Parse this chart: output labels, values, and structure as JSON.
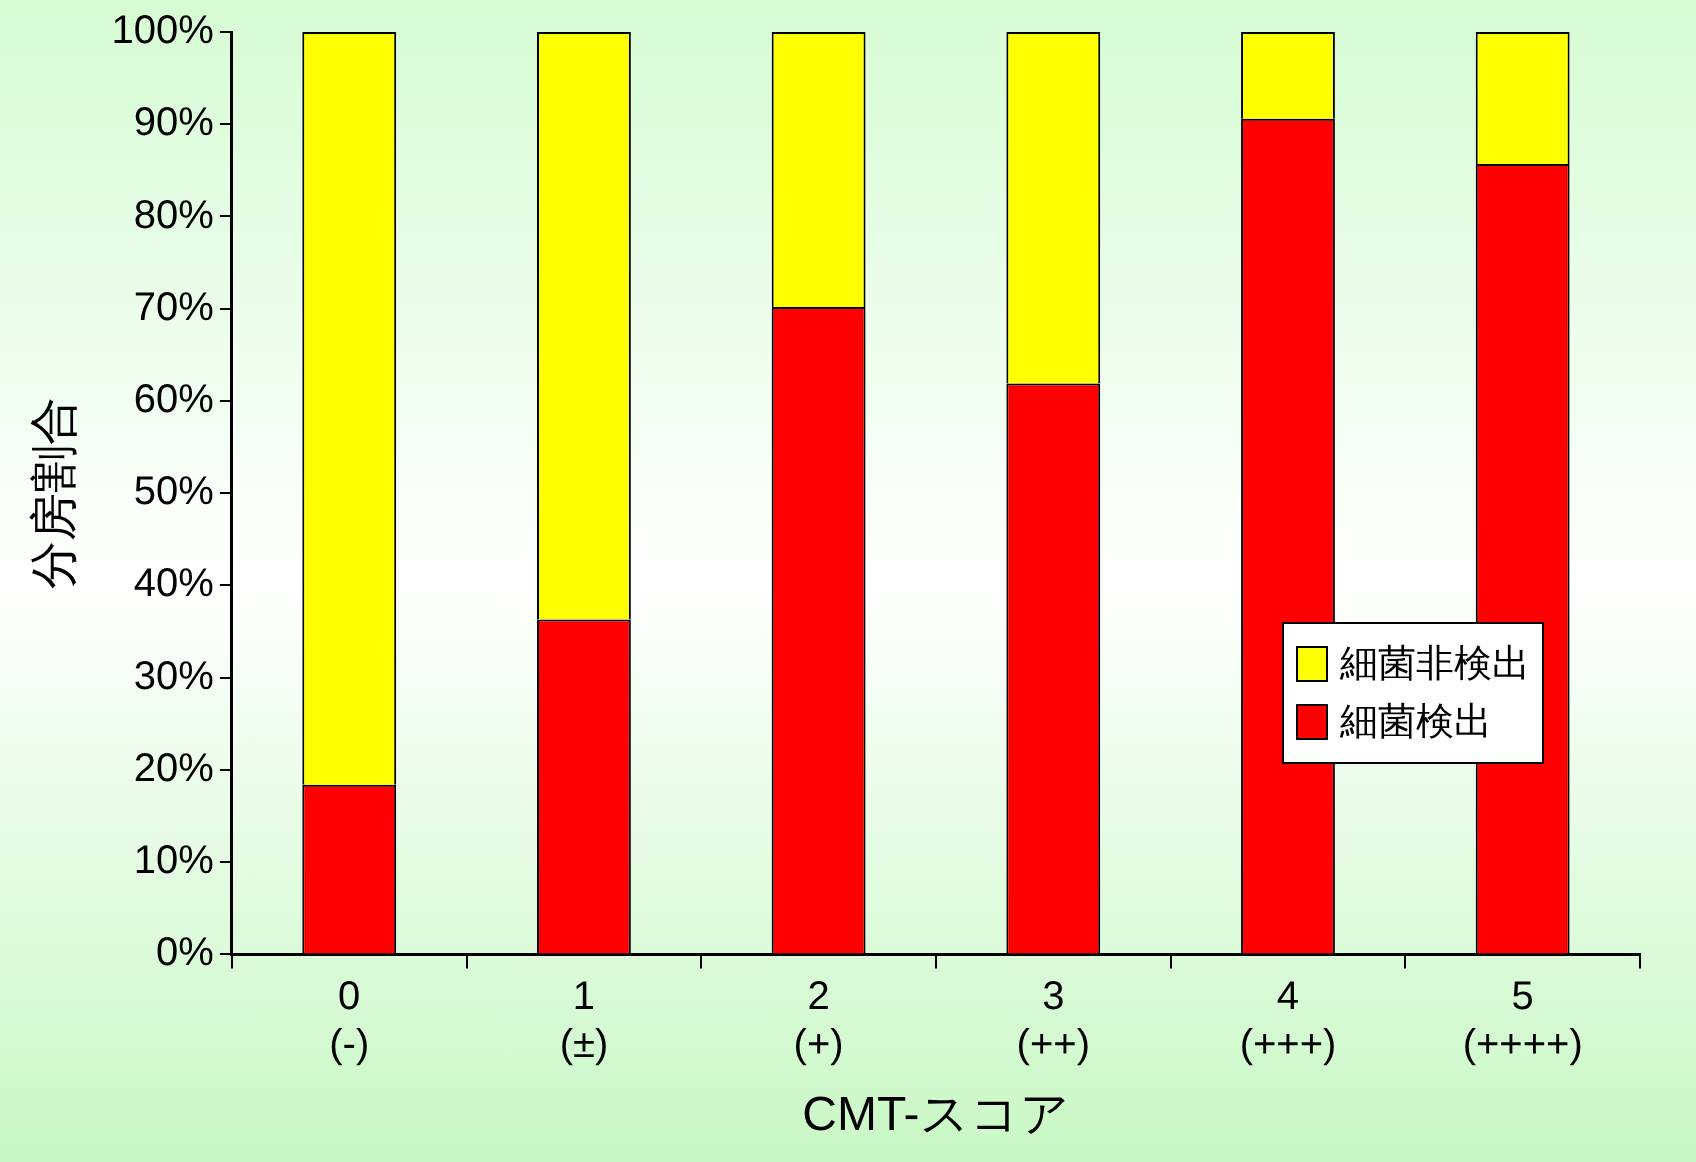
{
  "chart_data": {
    "type": "bar",
    "stacked": true,
    "xlabel": "CMT-スコア",
    "ylabel": "分房割合",
    "categories": [
      "0\n(-)",
      "1\n(±)",
      "2\n(+)",
      "3\n(++)",
      "4\n(+++)",
      "5\n(++++)"
    ],
    "series": [
      {
        "name": "細菌検出",
        "color": "#ff0000",
        "values": [
          18.4,
          36.3,
          70.2,
          61.9,
          90.6,
          85.7
        ]
      },
      {
        "name": "細菌非検出",
        "color": "#ffff00",
        "values": [
          81.6,
          63.7,
          29.8,
          38.1,
          9.4,
          14.3
        ]
      }
    ],
    "ylim": [
      0,
      100
    ],
    "yticks": [
      {
        "value": 0,
        "label": "0%"
      },
      {
        "value": 10,
        "label": "10%"
      },
      {
        "value": 20,
        "label": "20%"
      },
      {
        "value": 30,
        "label": "30%"
      },
      {
        "value": 40,
        "label": "40%"
      },
      {
        "value": 50,
        "label": "50%"
      },
      {
        "value": 60,
        "label": "60%"
      },
      {
        "value": 70,
        "label": "70%"
      },
      {
        "value": 80,
        "label": "80%"
      },
      {
        "value": 90,
        "label": "90%"
      },
      {
        "value": 100,
        "label": "100%"
      }
    ],
    "grid": false,
    "legend": "right"
  }
}
